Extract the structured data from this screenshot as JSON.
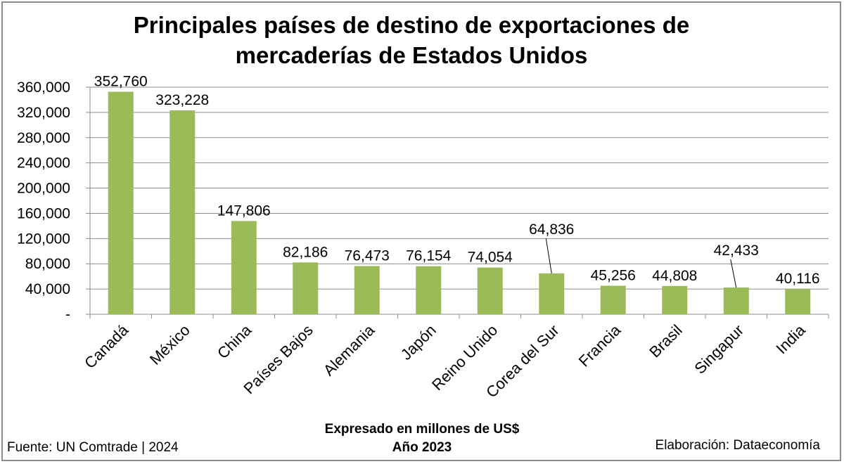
{
  "chart_data": {
    "type": "bar",
    "title_line1": "Principales países de destino de exportaciones de",
    "title_line2": "mercaderías de Estados Unidos",
    "categories": [
      "Canadá",
      "México",
      "China",
      "Países Bajos",
      "Alemania",
      "Japón",
      "Reino Unido",
      "Corea del Sur",
      "Francia",
      "Brasil",
      "Singapur",
      "India"
    ],
    "values": [
      352760,
      323228,
      147806,
      82186,
      76473,
      76154,
      74054,
      64836,
      45256,
      44808,
      42433,
      40116
    ],
    "data_labels": [
      "352,760",
      "323,228",
      "147,806",
      "82,186",
      "76,473",
      "76,154",
      "74,054",
      "64,836",
      "45,256",
      "44,808",
      "42,433",
      "40,116"
    ],
    "ylim": [
      0,
      360000
    ],
    "yticks": [
      0,
      40000,
      80000,
      120000,
      160000,
      200000,
      240000,
      280000,
      320000,
      360000
    ],
    "ytick_labels": [
      "-",
      "40,000",
      "80,000",
      "120,000",
      "160,000",
      "200,000",
      "240,000",
      "280,000",
      "320,000",
      "360,000"
    ],
    "grid": true,
    "bar_color": "#9bbb59",
    "grid_color": "#8c8c8c"
  },
  "footer": {
    "unit_line": "Expresado en millones de US$",
    "year_line": "Año 2023",
    "source": "Fuente:  UN Comtrade | 2024",
    "credit": "Elaboración: Dataeconomía"
  }
}
